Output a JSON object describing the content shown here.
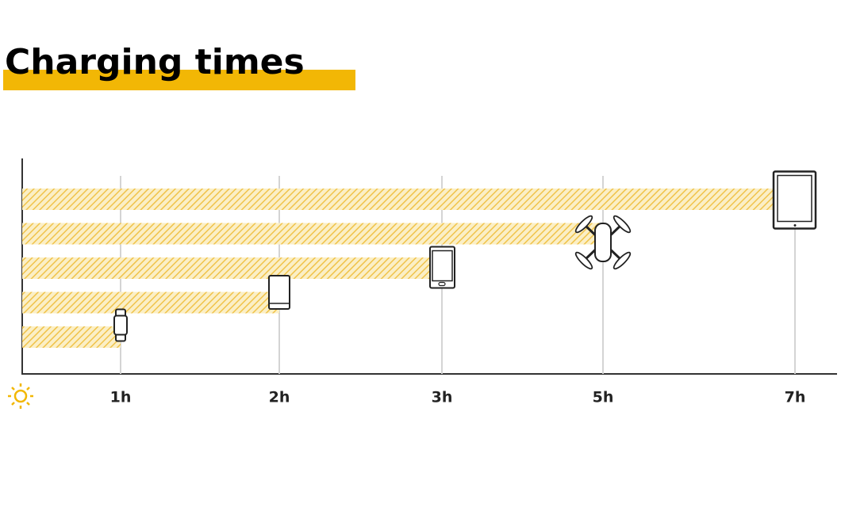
{
  "chart_data": {
    "type": "hbar",
    "title": "Charging times",
    "values": [
      1,
      2,
      3,
      5,
      7
    ],
    "color": "#f2c94c",
    "xlim": [
      0,
      7.5
    ],
    "xticks": [
      {
        "value": 1,
        "label": "1h"
      },
      {
        "value": 2,
        "label": "2h"
      },
      {
        "value": 3,
        "label": "3h"
      },
      {
        "value": 5,
        "label": "5h"
      },
      {
        "value": 7,
        "label": "7h"
      }
    ],
    "grid": true
  }
}
